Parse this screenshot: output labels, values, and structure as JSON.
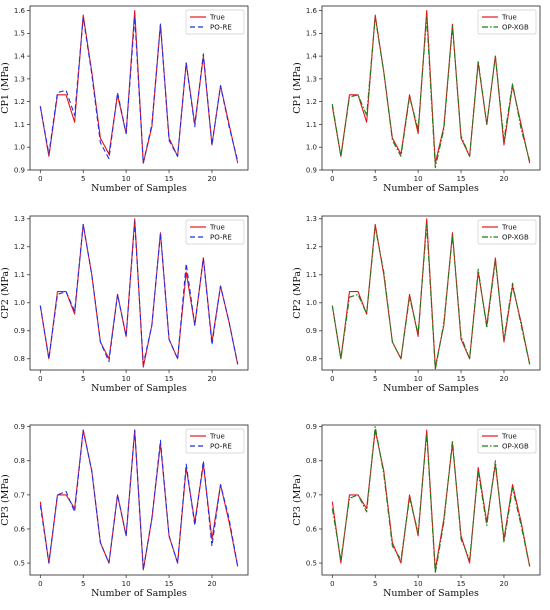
{
  "colors": {
    "true": "#e8141c",
    "po_re": "#1f2fe8",
    "op_xgb": "#1a7d1a"
  },
  "chart_data": [
    {
      "type": "line",
      "ylabel": "CP1 (MPa)",
      "xlabel": "Number of Samples",
      "xlim": [
        -1.2,
        24.2
      ],
      "ylim": [
        0.9,
        1.62
      ],
      "xticks": [
        "0",
        "5",
        "10",
        "15",
        "20"
      ],
      "xtick_values": [
        0,
        5,
        10,
        15,
        20
      ],
      "yticks": [
        "0.9",
        "1.0",
        "1.1",
        "1.2",
        "1.3",
        "1.4",
        "1.5",
        "1.6"
      ],
      "ytick_values": [
        0.9,
        1.0,
        1.1,
        1.2,
        1.3,
        1.4,
        1.5,
        1.6
      ],
      "x": [
        0,
        1,
        2,
        3,
        4,
        5,
        6,
        7,
        8,
        9,
        10,
        11,
        12,
        13,
        14,
        15,
        16,
        17,
        18,
        19,
        20,
        21,
        22,
        23
      ],
      "series": [
        {
          "name": "True",
          "style": "solid",
          "color": "#e8141c",
          "values": [
            1.18,
            0.96,
            1.23,
            1.23,
            1.11,
            1.58,
            1.33,
            1.04,
            0.97,
            1.23,
            1.06,
            1.6,
            0.93,
            1.09,
            1.54,
            1.04,
            0.96,
            1.37,
            1.1,
            1.4,
            1.01,
            1.27,
            1.1,
            0.93
          ]
        },
        {
          "name": "PO-RE",
          "style": "dashed",
          "color": "#1f2fe8",
          "values": [
            1.18,
            0.97,
            1.24,
            1.25,
            1.14,
            1.57,
            1.32,
            1.02,
            0.95,
            1.24,
            1.06,
            1.57,
            0.93,
            1.1,
            1.54,
            1.03,
            0.96,
            1.37,
            1.09,
            1.41,
            1.01,
            1.27,
            1.09,
            0.94
          ]
        }
      ]
    },
    {
      "type": "line",
      "ylabel": "CP1 (MPa)",
      "xlabel": "Number of Samples",
      "xlim": [
        -1.2,
        24.2
      ],
      "ylim": [
        0.9,
        1.62
      ],
      "xticks": [
        "0",
        "5",
        "10",
        "15",
        "20"
      ],
      "xtick_values": [
        0,
        5,
        10,
        15,
        20
      ],
      "yticks": [
        "0.9",
        "1.0",
        "1.1",
        "1.2",
        "1.3",
        "1.4",
        "1.5",
        "1.6"
      ],
      "ytick_values": [
        0.9,
        1.0,
        1.1,
        1.2,
        1.3,
        1.4,
        1.5,
        1.6
      ],
      "x": [
        0,
        1,
        2,
        3,
        4,
        5,
        6,
        7,
        8,
        9,
        10,
        11,
        12,
        13,
        14,
        15,
        16,
        17,
        18,
        19,
        20,
        21,
        22,
        23
      ],
      "series": [
        {
          "name": "True",
          "style": "solid",
          "color": "#e8141c",
          "values": [
            1.18,
            0.96,
            1.23,
            1.23,
            1.11,
            1.58,
            1.33,
            1.04,
            0.97,
            1.23,
            1.06,
            1.6,
            0.93,
            1.09,
            1.54,
            1.04,
            0.96,
            1.37,
            1.1,
            1.4,
            1.01,
            1.27,
            1.1,
            0.93
          ]
        },
        {
          "name": "OP-XGB",
          "style": "dashdot",
          "color": "#1a7d1a",
          "values": [
            1.19,
            0.96,
            1.22,
            1.23,
            1.14,
            1.57,
            1.33,
            1.03,
            0.96,
            1.22,
            1.08,
            1.57,
            0.91,
            1.08,
            1.53,
            1.05,
            0.96,
            1.38,
            1.1,
            1.4,
            1.03,
            1.28,
            1.08,
            0.94
          ]
        }
      ]
    },
    {
      "type": "line",
      "ylabel": "CP2 (MPa)",
      "xlabel": "Number of Samples",
      "xlim": [
        -1.2,
        24.2
      ],
      "ylim": [
        0.76,
        1.31
      ],
      "xticks": [
        "0",
        "5",
        "10",
        "15",
        "20"
      ],
      "xtick_values": [
        0,
        5,
        10,
        15,
        20
      ],
      "yticks": [
        "0.8",
        "0.9",
        "1.0",
        "1.1",
        "1.2",
        "1.3"
      ],
      "ytick_values": [
        0.8,
        0.9,
        1.0,
        1.1,
        1.2,
        1.3
      ],
      "x": [
        0,
        1,
        2,
        3,
        4,
        5,
        6,
        7,
        8,
        9,
        10,
        11,
        12,
        13,
        14,
        15,
        16,
        17,
        18,
        19,
        20,
        21,
        22,
        23
      ],
      "series": [
        {
          "name": "True",
          "style": "solid",
          "color": "#e8141c",
          "values": [
            0.99,
            0.8,
            1.04,
            1.04,
            0.96,
            1.28,
            1.1,
            0.86,
            0.8,
            1.03,
            0.88,
            1.3,
            0.77,
            0.92,
            1.25,
            0.87,
            0.8,
            1.11,
            0.92,
            1.16,
            0.86,
            1.06,
            0.93,
            0.78
          ]
        },
        {
          "name": "PO-RE",
          "style": "dashed",
          "color": "#1f2fe8",
          "values": [
            0.99,
            0.8,
            1.03,
            1.04,
            0.97,
            1.28,
            1.1,
            0.86,
            0.79,
            1.03,
            0.88,
            1.29,
            0.78,
            0.92,
            1.25,
            0.87,
            0.8,
            1.14,
            0.92,
            1.16,
            0.85,
            1.06,
            0.93,
            0.78
          ]
        }
      ]
    },
    {
      "type": "line",
      "ylabel": "CP2 (MPa)",
      "xlabel": "Number of Samples",
      "xlim": [
        -1.2,
        24.2
      ],
      "ylim": [
        0.76,
        1.31
      ],
      "xticks": [
        "0",
        "5",
        "10",
        "15",
        "20"
      ],
      "xtick_values": [
        0,
        5,
        10,
        15,
        20
      ],
      "yticks": [
        "0.8",
        "0.9",
        "1.0",
        "1.1",
        "1.2",
        "1.3"
      ],
      "ytick_values": [
        0.8,
        0.9,
        1.0,
        1.1,
        1.2,
        1.3
      ],
      "x": [
        0,
        1,
        2,
        3,
        4,
        5,
        6,
        7,
        8,
        9,
        10,
        11,
        12,
        13,
        14,
        15,
        16,
        17,
        18,
        19,
        20,
        21,
        22,
        23
      ],
      "series": [
        {
          "name": "True",
          "style": "solid",
          "color": "#e8141c",
          "values": [
            0.99,
            0.8,
            1.04,
            1.04,
            0.96,
            1.28,
            1.1,
            0.86,
            0.8,
            1.03,
            0.88,
            1.3,
            0.77,
            0.92,
            1.25,
            0.87,
            0.8,
            1.11,
            0.92,
            1.16,
            0.86,
            1.06,
            0.93,
            0.78
          ]
        },
        {
          "name": "OP-XGB",
          "style": "dashdot",
          "color": "#1a7d1a",
          "values": [
            0.99,
            0.8,
            1.02,
            1.03,
            0.96,
            1.27,
            1.11,
            0.86,
            0.8,
            1.02,
            0.89,
            1.28,
            0.76,
            0.93,
            1.24,
            0.88,
            0.8,
            1.12,
            0.91,
            1.15,
            0.87,
            1.07,
            0.92,
            0.78
          ]
        }
      ]
    },
    {
      "type": "line",
      "ylabel": "CP3 (MPa)",
      "xlabel": "Number of Samples",
      "xlim": [
        -1.2,
        24.2
      ],
      "ylim": [
        0.465,
        0.905
      ],
      "xticks": [
        "0",
        "5",
        "10",
        "15",
        "20"
      ],
      "xtick_values": [
        0,
        5,
        10,
        15,
        20
      ],
      "yticks": [
        "0.5",
        "0.6",
        "0.7",
        "0.8",
        "0.9"
      ],
      "ytick_values": [
        0.5,
        0.6,
        0.7,
        0.8,
        0.9
      ],
      "x": [
        0,
        1,
        2,
        3,
        4,
        5,
        6,
        7,
        8,
        9,
        10,
        11,
        12,
        13,
        14,
        15,
        16,
        17,
        18,
        19,
        20,
        21,
        22,
        23
      ],
      "series": [
        {
          "name": "True",
          "style": "solid",
          "color": "#e8141c",
          "values": [
            0.68,
            0.5,
            0.7,
            0.7,
            0.66,
            0.89,
            0.77,
            0.56,
            0.5,
            0.7,
            0.58,
            0.89,
            0.48,
            0.63,
            0.85,
            0.58,
            0.5,
            0.78,
            0.62,
            0.79,
            0.57,
            0.73,
            0.62,
            0.49
          ]
        },
        {
          "name": "PO-RE",
          "style": "dashed",
          "color": "#1f2fe8",
          "values": [
            0.67,
            0.5,
            0.7,
            0.71,
            0.65,
            0.89,
            0.77,
            0.56,
            0.5,
            0.7,
            0.58,
            0.89,
            0.48,
            0.63,
            0.86,
            0.58,
            0.5,
            0.79,
            0.61,
            0.8,
            0.55,
            0.73,
            0.63,
            0.49
          ]
        }
      ]
    },
    {
      "type": "line",
      "ylabel": "CP3 (MPa)",
      "xlabel": "Number of Samples",
      "xlim": [
        -1.2,
        24.2
      ],
      "ylim": [
        0.465,
        0.905
      ],
      "xticks": [
        "0",
        "5",
        "10",
        "15",
        "20"
      ],
      "xtick_values": [
        0,
        5,
        10,
        15,
        20
      ],
      "yticks": [
        "0.5",
        "0.6",
        "0.7",
        "0.8",
        "0.9"
      ],
      "ytick_values": [
        0.5,
        0.6,
        0.7,
        0.8,
        0.9
      ],
      "x": [
        0,
        1,
        2,
        3,
        4,
        5,
        6,
        7,
        8,
        9,
        10,
        11,
        12,
        13,
        14,
        15,
        16,
        17,
        18,
        19,
        20,
        21,
        22,
        23
      ],
      "series": [
        {
          "name": "True",
          "style": "solid",
          "color": "#e8141c",
          "values": [
            0.68,
            0.5,
            0.7,
            0.7,
            0.66,
            0.89,
            0.77,
            0.56,
            0.5,
            0.7,
            0.58,
            0.89,
            0.48,
            0.63,
            0.85,
            0.58,
            0.5,
            0.78,
            0.62,
            0.79,
            0.57,
            0.73,
            0.62,
            0.49
          ]
        },
        {
          "name": "OP-XGB",
          "style": "dashdot",
          "color": "#1a7d1a",
          "values": [
            0.66,
            0.51,
            0.69,
            0.7,
            0.65,
            0.9,
            0.76,
            0.55,
            0.51,
            0.69,
            0.59,
            0.88,
            0.47,
            0.62,
            0.86,
            0.57,
            0.51,
            0.77,
            0.61,
            0.8,
            0.56,
            0.72,
            0.61,
            0.49
          ]
        }
      ]
    }
  ]
}
